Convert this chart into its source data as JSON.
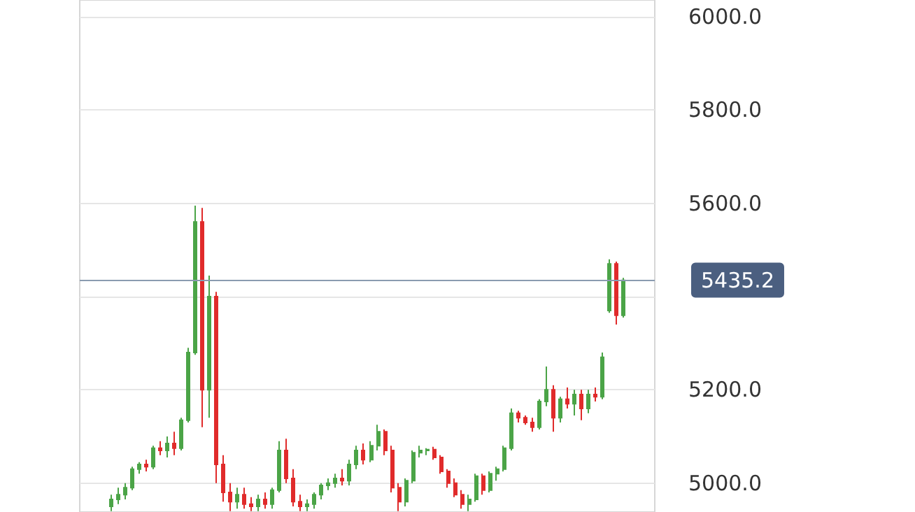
{
  "chart_data": {
    "type": "candlestick",
    "categories": [
      null,
      null,
      null,
      null,
      null,
      null,
      null,
      null,
      null,
      null,
      null,
      null,
      null,
      null,
      null,
      null,
      null,
      null,
      null,
      null,
      null,
      null,
      null,
      null,
      null,
      null,
      null,
      null,
      null,
      null,
      null,
      null,
      null,
      null,
      null,
      null,
      null,
      null,
      null,
      null,
      null,
      null,
      null,
      null,
      null,
      null,
      null,
      null,
      null,
      null,
      null,
      null,
      null,
      null,
      null,
      null,
      null,
      null,
      null,
      null,
      null,
      null,
      null,
      null,
      null,
      null,
      null,
      null,
      null,
      null,
      null,
      null,
      null,
      null,
      null,
      null,
      null,
      null,
      null,
      null,
      null,
      null
    ],
    "ohlc": [
      null,
      null,
      null,
      null,
      [
        4950,
        4975,
        4940,
        4965
      ],
      [
        4965,
        4990,
        4955,
        4975
      ],
      [
        4975,
        5000,
        4965,
        4990
      ],
      [
        4990,
        5035,
        4985,
        5030
      ],
      [
        5030,
        5045,
        5020,
        5040
      ],
      [
        5040,
        5050,
        5025,
        5035
      ],
      [
        5035,
        5080,
        5030,
        5075
      ],
      [
        5075,
        5090,
        5060,
        5070
      ],
      [
        5070,
        5100,
        5055,
        5085
      ],
      [
        5085,
        5110,
        5060,
        5075
      ],
      [
        5075,
        5140,
        5070,
        5135
      ],
      [
        5135,
        5290,
        5130,
        5280
      ],
      [
        5280,
        5595,
        5275,
        5560
      ],
      [
        5560,
        5590,
        5120,
        5200
      ],
      [
        5200,
        5445,
        5140,
        5400
      ],
      [
        5400,
        5410,
        5000,
        5040
      ],
      [
        5040,
        5060,
        4960,
        4980
      ],
      [
        4980,
        5000,
        4940,
        4960
      ],
      [
        4960,
        4990,
        4945,
        4975
      ],
      [
        4975,
        4990,
        4945,
        4955
      ],
      [
        4955,
        4970,
        4940,
        4950
      ],
      [
        4950,
        4975,
        4940,
        4965
      ],
      [
        4965,
        4980,
        4945,
        4955
      ],
      [
        4955,
        4990,
        4945,
        4985
      ],
      [
        4985,
        5090,
        4980,
        5070
      ],
      [
        5070,
        5095,
        5000,
        5010
      ],
      [
        5010,
        5030,
        4950,
        4960
      ],
      [
        4960,
        4975,
        4940,
        4950
      ],
      [
        4950,
        4965,
        4940,
        4955
      ],
      [
        4955,
        4980,
        4945,
        4975
      ],
      [
        4975,
        5000,
        4965,
        4995
      ],
      [
        4995,
        5010,
        4985,
        5000
      ],
      [
        5000,
        5020,
        4990,
        5010
      ],
      [
        5010,
        5030,
        4995,
        5005
      ],
      [
        5005,
        5050,
        4995,
        5040
      ],
      [
        5040,
        5080,
        5030,
        5070
      ],
      [
        5070,
        5085,
        5040,
        5050
      ],
      [
        5050,
        5090,
        5045,
        5080
      ],
      [
        5080,
        5125,
        5070,
        5110
      ],
      [
        5110,
        5115,
        5060,
        5070
      ],
      [
        5070,
        5080,
        4980,
        4990
      ],
      [
        4990,
        5000,
        4940,
        4960
      ],
      [
        4960,
        5010,
        4950,
        5005
      ],
      [
        5005,
        5070,
        5000,
        5065
      ],
      [
        5065,
        5080,
        5055,
        5070
      ],
      [
        5070,
        5075,
        5060,
        5072
      ],
      [
        5072,
        5078,
        5050,
        5055
      ],
      [
        5055,
        5060,
        5020,
        5025
      ],
      [
        5025,
        5030,
        4990,
        5000
      ],
      [
        5000,
        5010,
        4970,
        4975
      ],
      [
        4975,
        4985,
        4945,
        4955
      ],
      [
        4955,
        4975,
        4940,
        4965
      ],
      [
        4965,
        5020,
        4960,
        5015
      ],
      [
        5015,
        5020,
        4975,
        4985
      ],
      [
        4985,
        5025,
        4980,
        5020
      ],
      [
        5020,
        5035,
        5005,
        5030
      ],
      [
        5030,
        5080,
        5025,
        5075
      ],
      [
        5075,
        5160,
        5070,
        5150
      ],
      [
        5150,
        5155,
        5130,
        5140
      ],
      [
        5140,
        5145,
        5125,
        5130
      ],
      [
        5130,
        5140,
        5110,
        5120
      ],
      [
        5120,
        5180,
        5115,
        5175
      ],
      [
        5175,
        5250,
        5165,
        5200
      ],
      [
        5200,
        5210,
        5110,
        5140
      ],
      [
        5140,
        5185,
        5130,
        5180
      ],
      [
        5180,
        5205,
        5160,
        5170
      ],
      [
        5170,
        5200,
        5145,
        5190
      ],
      [
        5190,
        5200,
        5135,
        5160
      ],
      [
        5160,
        5200,
        5150,
        5190
      ],
      [
        5190,
        5205,
        5175,
        5185
      ],
      [
        5185,
        5280,
        5180,
        5270
      ],
      [
        5370,
        5480,
        5365,
        5470
      ],
      [
        5470,
        5475,
        5340,
        5360
      ],
      [
        5360,
        5440,
        5355,
        5435
      ],
      null,
      null,
      null,
      null
    ],
    "colors": [
      null,
      null,
      null,
      null,
      "#4ba447",
      "#4ba447",
      "#4ba447",
      "#4ba447",
      "#4ba447",
      "#e02b2b",
      "#4ba447",
      "#e02b2b",
      "#4ba447",
      "#e02b2b",
      "#4ba447",
      "#4ba447",
      "#4ba447",
      "#e02b2b",
      "#4ba447",
      "#e02b2b",
      "#e02b2b",
      "#e02b2b",
      "#4ba447",
      "#e02b2b",
      "#e02b2b",
      "#4ba447",
      "#e02b2b",
      "#4ba447",
      "#4ba447",
      "#e02b2b",
      "#e02b2b",
      "#e02b2b",
      "#4ba447",
      "#4ba447",
      "#4ba447",
      "#4ba447",
      "#4ba447",
      "#e02b2b",
      "#4ba447",
      "#4ba447",
      "#e02b2b",
      "#4ba447",
      "#4ba447",
      "#e02b2b",
      "#e02b2b",
      "#e02b2b",
      "#4ba447",
      "#4ba447",
      "#4ba447",
      "#4ba447",
      "#e02b2b",
      "#e02b2b",
      "#e02b2b",
      "#e02b2b",
      "#e02b2b",
      "#4ba447",
      "#4ba447",
      "#e02b2b",
      "#4ba447",
      "#4ba447",
      "#4ba447",
      "#4ba447",
      "#e02b2b",
      "#e02b2b",
      "#e02b2b",
      "#4ba447",
      "#4ba447",
      "#e02b2b",
      "#4ba447",
      "#e02b2b",
      "#4ba447",
      "#e02b2b",
      "#4ba447",
      "#e02b2b",
      "#4ba447",
      "#4ba447",
      "#e02b2b",
      "#4ba447",
      null,
      null,
      null,
      null
    ],
    "ylim": [
      4938,
      6036
    ],
    "yticks": [
      {
        "value": 5000,
        "label": "5000.0"
      },
      {
        "value": 5200,
        "label": "5200.0"
      },
      {
        "value": 5400,
        "label": null
      },
      {
        "value": 5600,
        "label": "5600.0"
      },
      {
        "value": 5800,
        "label": "5800.0"
      },
      {
        "value": 6000,
        "label": "6000.0"
      }
    ],
    "grid": "y",
    "tick_labels": "y",
    "ref_lines": [
      {
        "axis": "y",
        "value": 5435.2,
        "label": "5435.2",
        "color": "#8a9bb0"
      }
    ]
  }
}
